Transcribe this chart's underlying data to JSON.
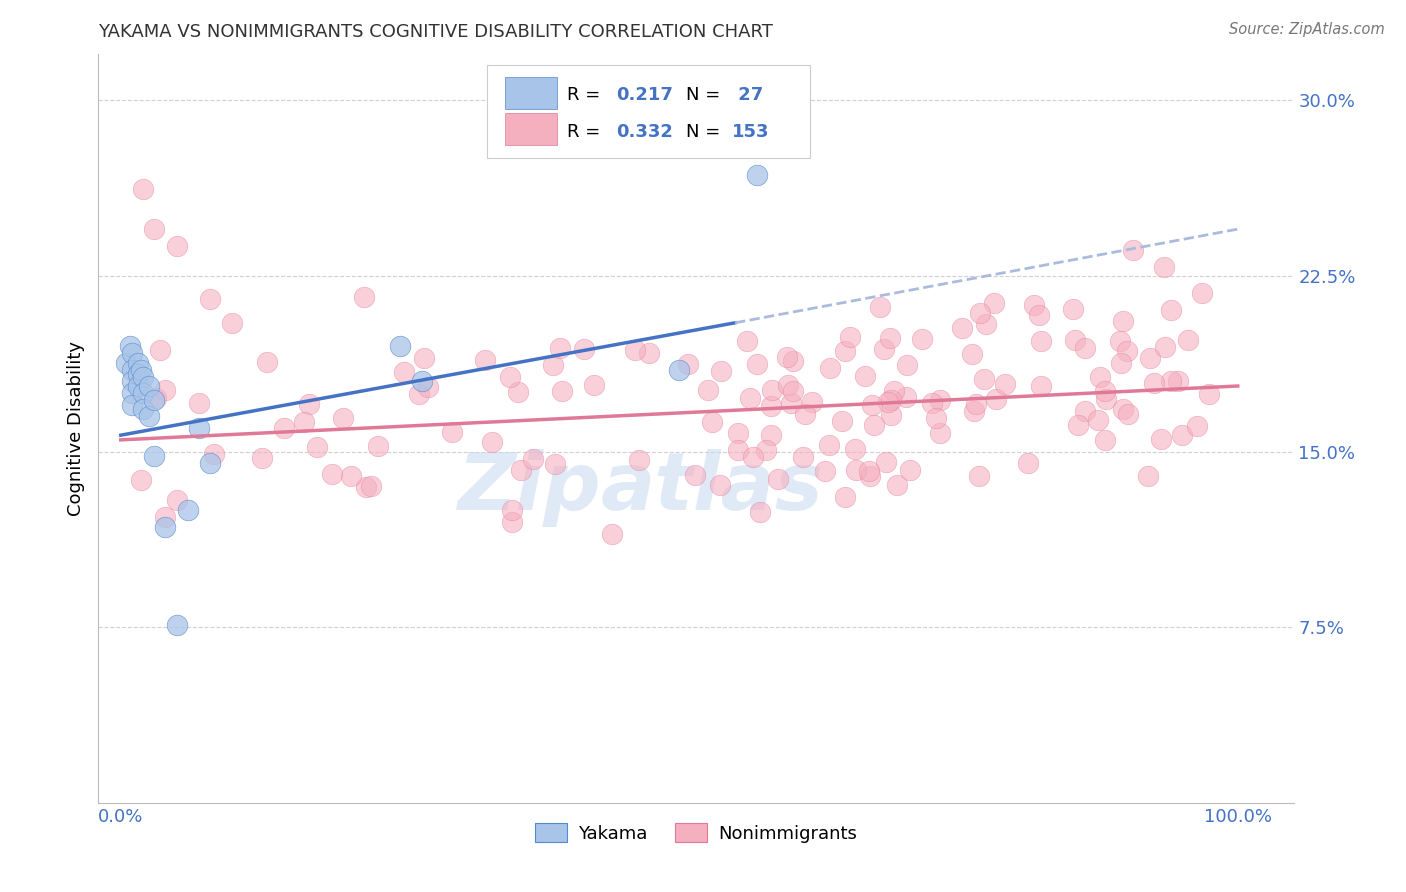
{
  "title": "YAKAMA VS NONIMMIGRANTS COGNITIVE DISABILITY CORRELATION CHART",
  "source": "Source: ZipAtlas.com",
  "ylabel": "Cognitive Disability",
  "watermark_zip": "Zip",
  "watermark_atlas": "atlas",
  "xlim": [
    -0.02,
    1.05
  ],
  "ylim": [
    0.0,
    0.32
  ],
  "yticks": [
    0.075,
    0.15,
    0.225,
    0.3
  ],
  "ytick_labels": [
    "7.5%",
    "15.0%",
    "22.5%",
    "30.0%"
  ],
  "xtick_vals": [
    0.0,
    1.0
  ],
  "xtick_labels": [
    "0.0%",
    "100.0%"
  ],
  "blue_R": 0.217,
  "blue_N": 27,
  "pink_R": 0.332,
  "pink_N": 153,
  "blue_color": "#a8c4e8",
  "pink_color": "#f5b0c0",
  "blue_edge_color": "#5588cc",
  "pink_edge_color": "#e07898",
  "blue_line_color": "#4472c4",
  "pink_line_color": "#e07898",
  "dashed_line_color": "#aabbdd",
  "legend_text_color": "#4472c4",
  "axis_color": "#4472c4",
  "grid_color": "#cccccc",
  "title_color": "#333333",
  "blue_line_start_x": 0.0,
  "blue_line_start_y": 0.157,
  "blue_line_solid_end_x": 0.55,
  "blue_line_solid_end_y": 0.205,
  "blue_line_dashed_end_x": 1.0,
  "blue_line_dashed_end_y": 0.245,
  "pink_line_start_x": 0.0,
  "pink_line_start_y": 0.155,
  "pink_line_end_x": 1.0,
  "pink_line_end_y": 0.178
}
